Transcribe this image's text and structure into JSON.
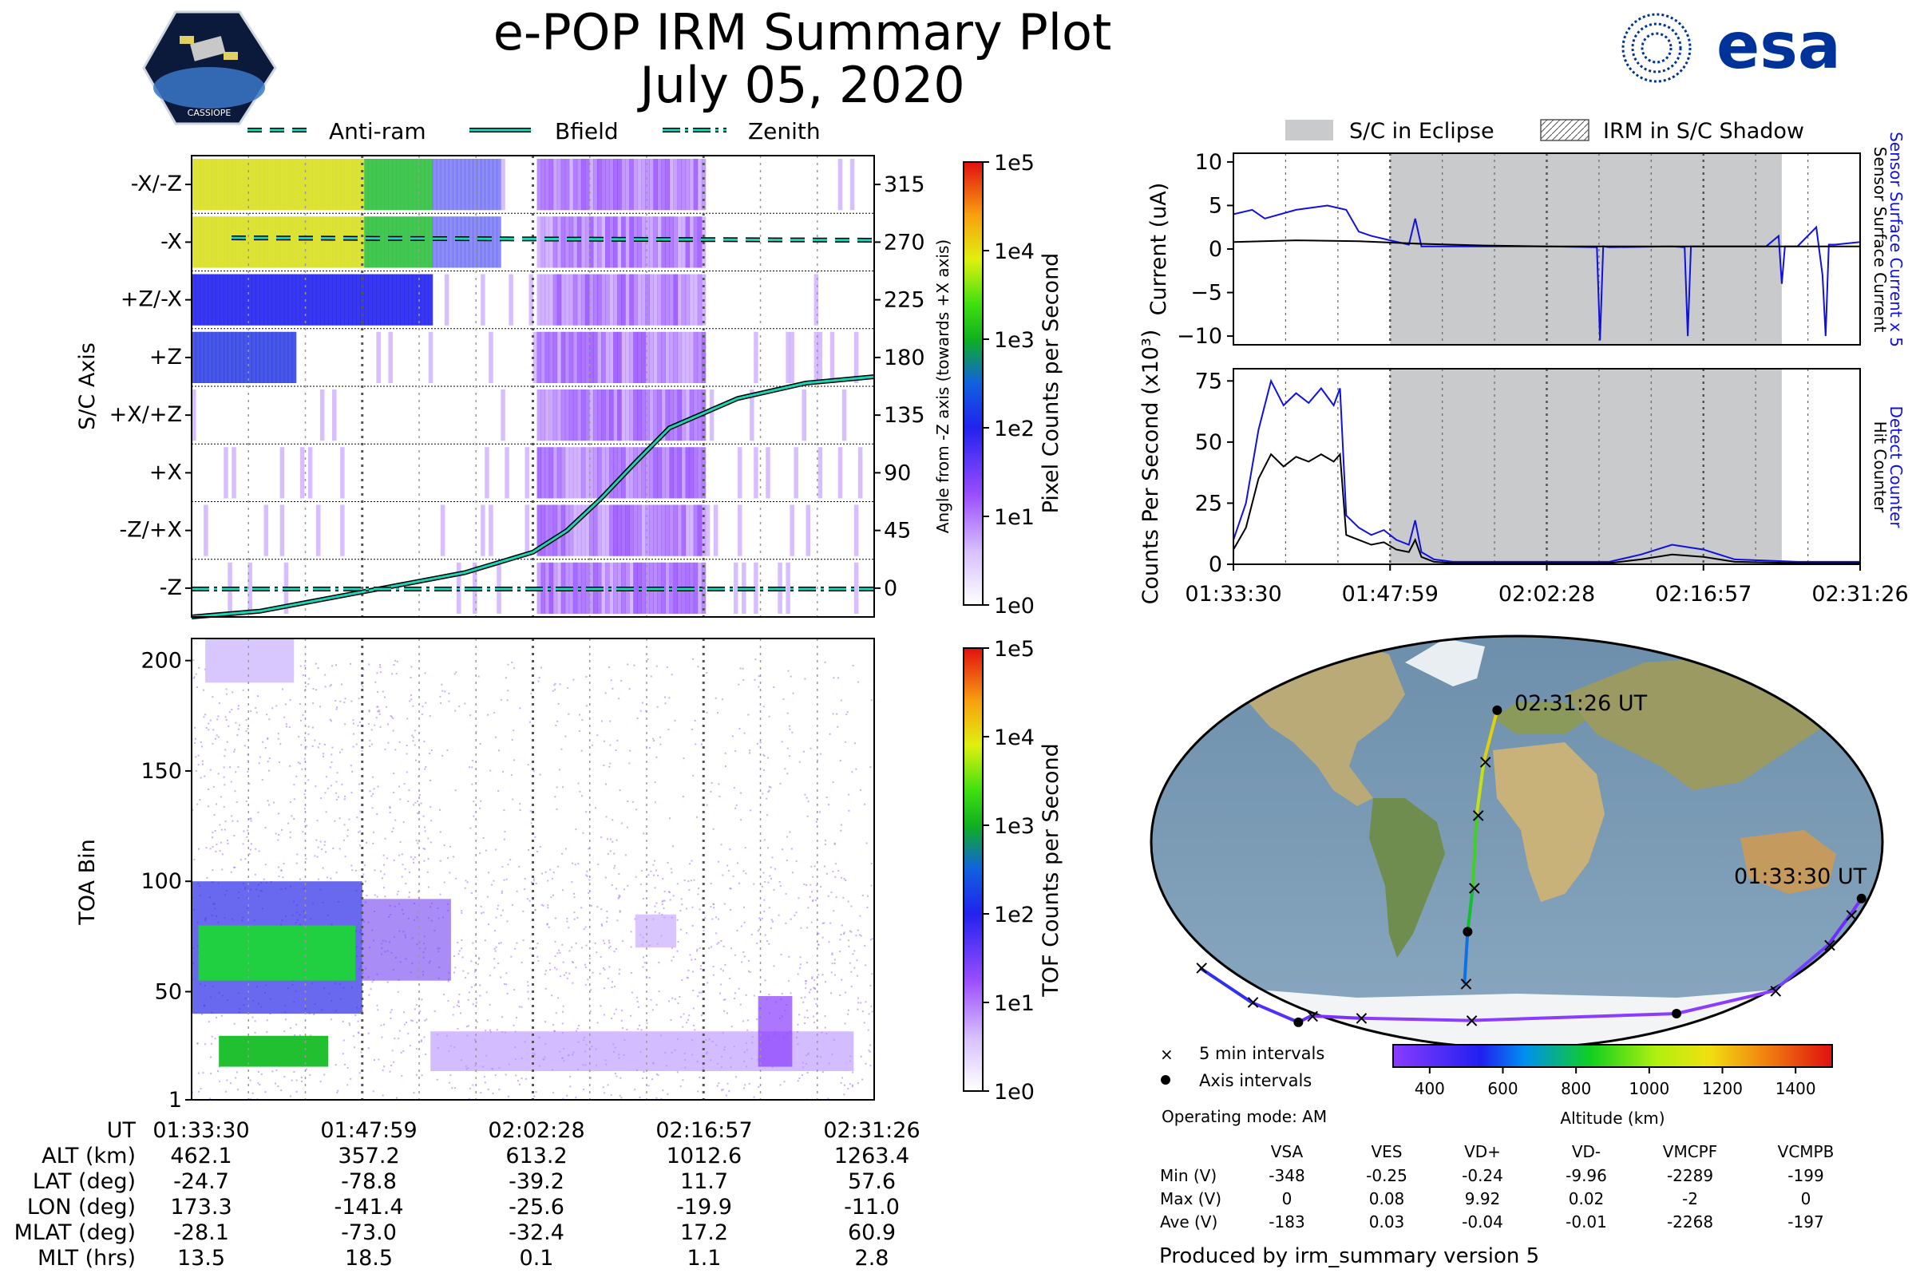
{
  "title": {
    "line1": "e-POP IRM Summary Plot",
    "line2": "July 05, 2020"
  },
  "logo": {
    "badge_text": "CASSIOPE",
    "brand": "esa",
    "brand_color": "#003399"
  },
  "top_legend": [
    "Anti-ram",
    "Bfield",
    "Zenith"
  ],
  "right_legend": [
    "S/C in Eclipse",
    "IRM in S/C Shadow"
  ],
  "colors": {
    "trace_blue": "#1010e0",
    "trace_black": "#000000",
    "eclipse": "#c8cacb",
    "teal": "#19d6b8"
  },
  "chart_data": [
    {
      "type": "heatmap",
      "name": "sc-axis-panel",
      "ylabel": "S/C Axis",
      "y_right_label": "Angle from -Z axis (towards +X axis)",
      "row_labels": [
        "-X/-Z",
        "-X",
        "+Z/-X",
        "+Z",
        "+X/+Z",
        "+X",
        "-Z/+X",
        "-Z"
      ],
      "right_ticks": [
        "315",
        "270",
        "225",
        "180",
        "135",
        "90",
        "45",
        "0"
      ],
      "colorbar": {
        "label": "Pixel Counts per Second",
        "ticks": [
          "1e5",
          "1e4",
          "1e3",
          "1e2",
          "1e1",
          "1e0"
        ]
      },
      "bfield_angle_deg": [
        [
          0,
          -25
        ],
        [
          0.1,
          -18
        ],
        [
          0.2,
          -8
        ],
        [
          0.3,
          2
        ],
        [
          0.4,
          12
        ],
        [
          0.5,
          28
        ],
        [
          0.55,
          45
        ],
        [
          0.6,
          70
        ],
        [
          0.65,
          98
        ],
        [
          0.7,
          125
        ],
        [
          0.8,
          148
        ],
        [
          0.9,
          160
        ],
        [
          1.0,
          165
        ]
      ],
      "antiram_angle_deg": 270,
      "zenith_angle_deg": 0
    },
    {
      "type": "heatmap",
      "name": "toa-panel",
      "ylabel": "TOA Bin",
      "yticks": [
        "1",
        "50",
        "100",
        "150",
        "200"
      ],
      "ylim": [
        1,
        210
      ],
      "colorbar": {
        "label": "TOF Counts per Second",
        "ticks": [
          "1e5",
          "1e4",
          "1e3",
          "1e2",
          "1e1",
          "1e0"
        ]
      }
    },
    {
      "type": "line",
      "name": "current-panel",
      "ylabel": "Current (uA)",
      "yticks": [
        "10",
        "5",
        "0",
        "−5",
        "−10"
      ],
      "ylim": [
        -11,
        11
      ],
      "right_label_blue": "Sensor Surface Current x 5",
      "right_label_black": "Sensor Surface Current",
      "series": [
        {
          "name": "Sensor Surface Current x 5",
          "color": "#1010e0",
          "x": [
            0,
            0.03,
            0.05,
            0.1,
            0.15,
            0.18,
            0.2,
            0.22,
            0.25,
            0.28,
            0.29,
            0.3,
            0.4,
            0.5,
            0.58,
            0.585,
            0.59,
            0.6,
            0.7,
            0.72,
            0.725,
            0.73,
            0.75,
            0.85,
            0.87,
            0.875,
            0.88,
            0.9,
            0.93,
            0.94,
            0.945,
            0.95,
            0.96,
            1.0
          ],
          "y": [
            4,
            4.5,
            3.5,
            4.5,
            5,
            4.5,
            2,
            1.5,
            1,
            0.5,
            3.5,
            0.3,
            0.3,
            0.3,
            0.2,
            -10.5,
            0.3,
            0.2,
            0.3,
            0.2,
            -10,
            0.3,
            0.3,
            0.3,
            1.5,
            -4,
            0.3,
            0.3,
            2.5,
            -3,
            -10,
            0.5,
            0.5,
            0.8
          ]
        },
        {
          "name": "Sensor Surface Current",
          "color": "#000000",
          "x": [
            0,
            0.1,
            0.2,
            0.3,
            0.4,
            0.5,
            0.6,
            0.7,
            0.8,
            0.9,
            1.0
          ],
          "y": [
            0.8,
            1,
            0.9,
            0.6,
            0.4,
            0.3,
            0.3,
            0.3,
            0.3,
            0.3,
            0.3
          ]
        }
      ]
    },
    {
      "type": "line",
      "name": "counts-panel",
      "ylabel": "Counts Per Second (x10³)",
      "yticks": [
        "75",
        "50",
        "25",
        "0"
      ],
      "ylim": [
        0,
        80
      ],
      "xticks": [
        "01:33:30",
        "01:47:59",
        "02:02:28",
        "02:16:57",
        "02:31:26"
      ],
      "right_label_blue": "Detect Counter",
      "right_label_black": "Hit Counter",
      "series": [
        {
          "name": "Detect Counter",
          "color": "#1010e0",
          "x": [
            0,
            0.02,
            0.04,
            0.06,
            0.08,
            0.1,
            0.12,
            0.14,
            0.16,
            0.17,
            0.18,
            0.2,
            0.22,
            0.24,
            0.26,
            0.28,
            0.29,
            0.3,
            0.32,
            0.35,
            0.4,
            0.5,
            0.6,
            0.65,
            0.7,
            0.75,
            0.8,
            0.9,
            1.0
          ],
          "y": [
            10,
            25,
            55,
            75,
            65,
            70,
            66,
            72,
            65,
            72,
            20,
            15,
            12,
            14,
            10,
            8,
            18,
            5,
            2,
            1,
            1,
            1,
            1,
            4,
            8,
            6,
            2,
            1,
            1
          ]
        },
        {
          "name": "Hit Counter",
          "color": "#000000",
          "x": [
            0,
            0.02,
            0.04,
            0.06,
            0.08,
            0.1,
            0.12,
            0.14,
            0.16,
            0.17,
            0.18,
            0.2,
            0.22,
            0.24,
            0.26,
            0.28,
            0.29,
            0.3,
            0.32,
            0.35,
            0.4,
            0.5,
            0.6,
            0.65,
            0.7,
            0.75,
            0.8,
            0.9,
            1.0
          ],
          "y": [
            6,
            15,
            35,
            45,
            40,
            44,
            42,
            45,
            42,
            45,
            12,
            10,
            8,
            9,
            6,
            5,
            10,
            3,
            1,
            0.5,
            0.5,
            0.5,
            0.5,
            2,
            4,
            3,
            1,
            0.5,
            0.5
          ]
        }
      ],
      "eclipse_range": [
        0.25,
        0.875
      ]
    },
    {
      "type": "scatter",
      "name": "orbit-map",
      "start_label": "01:33:30 UT",
      "end_label": "02:31:26 UT",
      "ground_track_lonlat": [
        [
          173.3,
          -24.7
        ],
        [
          170,
          -32
        ],
        [
          165,
          -45
        ],
        [
          150,
          -65
        ],
        [
          100,
          -75
        ],
        [
          -30,
          -78
        ],
        [
          -100,
          -77
        ],
        [
          -130,
          -76
        ],
        [
          -141.4,
          -78.8
        ],
        [
          -160,
          -70
        ],
        [
          -175,
          -55
        ],
        [
          -30,
          -62
        ],
        [
          -25.6,
          -39.2
        ],
        [
          -22,
          -20
        ],
        [
          -19.9,
          11.7
        ],
        [
          -17,
          35
        ],
        [
          -11,
          57.6
        ]
      ],
      "legend": [
        "5 min intervals",
        "Axis intervals"
      ],
      "colorbar": {
        "label": "Altitude (km)",
        "ticks": [
          "400",
          "600",
          "800",
          "1000",
          "1200",
          "1400"
        ]
      }
    }
  ],
  "operating_mode": "Operating mode: AM",
  "voltage_table": {
    "headers": [
      "VSA",
      "VES",
      "VD+",
      "VD-",
      "VMCPF",
      "VCMPB"
    ],
    "rows": [
      {
        "label": "Min (V)",
        "values": [
          "-348",
          "-0.25",
          "-0.24",
          "-9.96",
          "-2289",
          "-199"
        ]
      },
      {
        "label": "Max (V)",
        "values": [
          "0",
          "0.08",
          "9.92",
          "0.02",
          "-2",
          "0"
        ]
      },
      {
        "label": "Ave (V)",
        "values": [
          "-183",
          "0.03",
          "-0.04",
          "-0.01",
          "-2268",
          "-197"
        ]
      }
    ]
  },
  "ephemeris": {
    "labels": [
      "UT",
      "ALT (km)",
      "LAT (deg)",
      "LON (deg)",
      "MLAT (deg)",
      "MLT (hrs)"
    ],
    "columns": [
      [
        "01:33:30",
        "462.1",
        "-24.7",
        "173.3",
        "-28.1",
        "13.5"
      ],
      [
        "01:47:59",
        "357.2",
        "-78.8",
        "-141.4",
        "-73.0",
        "18.5"
      ],
      [
        "02:02:28",
        "613.2",
        "-39.2",
        "-25.6",
        "-32.4",
        "0.1"
      ],
      [
        "02:16:57",
        "1012.6",
        "11.7",
        "-19.9",
        "17.2",
        "1.1"
      ],
      [
        "02:31:26",
        "1263.4",
        "57.6",
        "-11.0",
        "60.9",
        "2.8"
      ]
    ]
  },
  "footer": "Produced by irm_summary version 5"
}
